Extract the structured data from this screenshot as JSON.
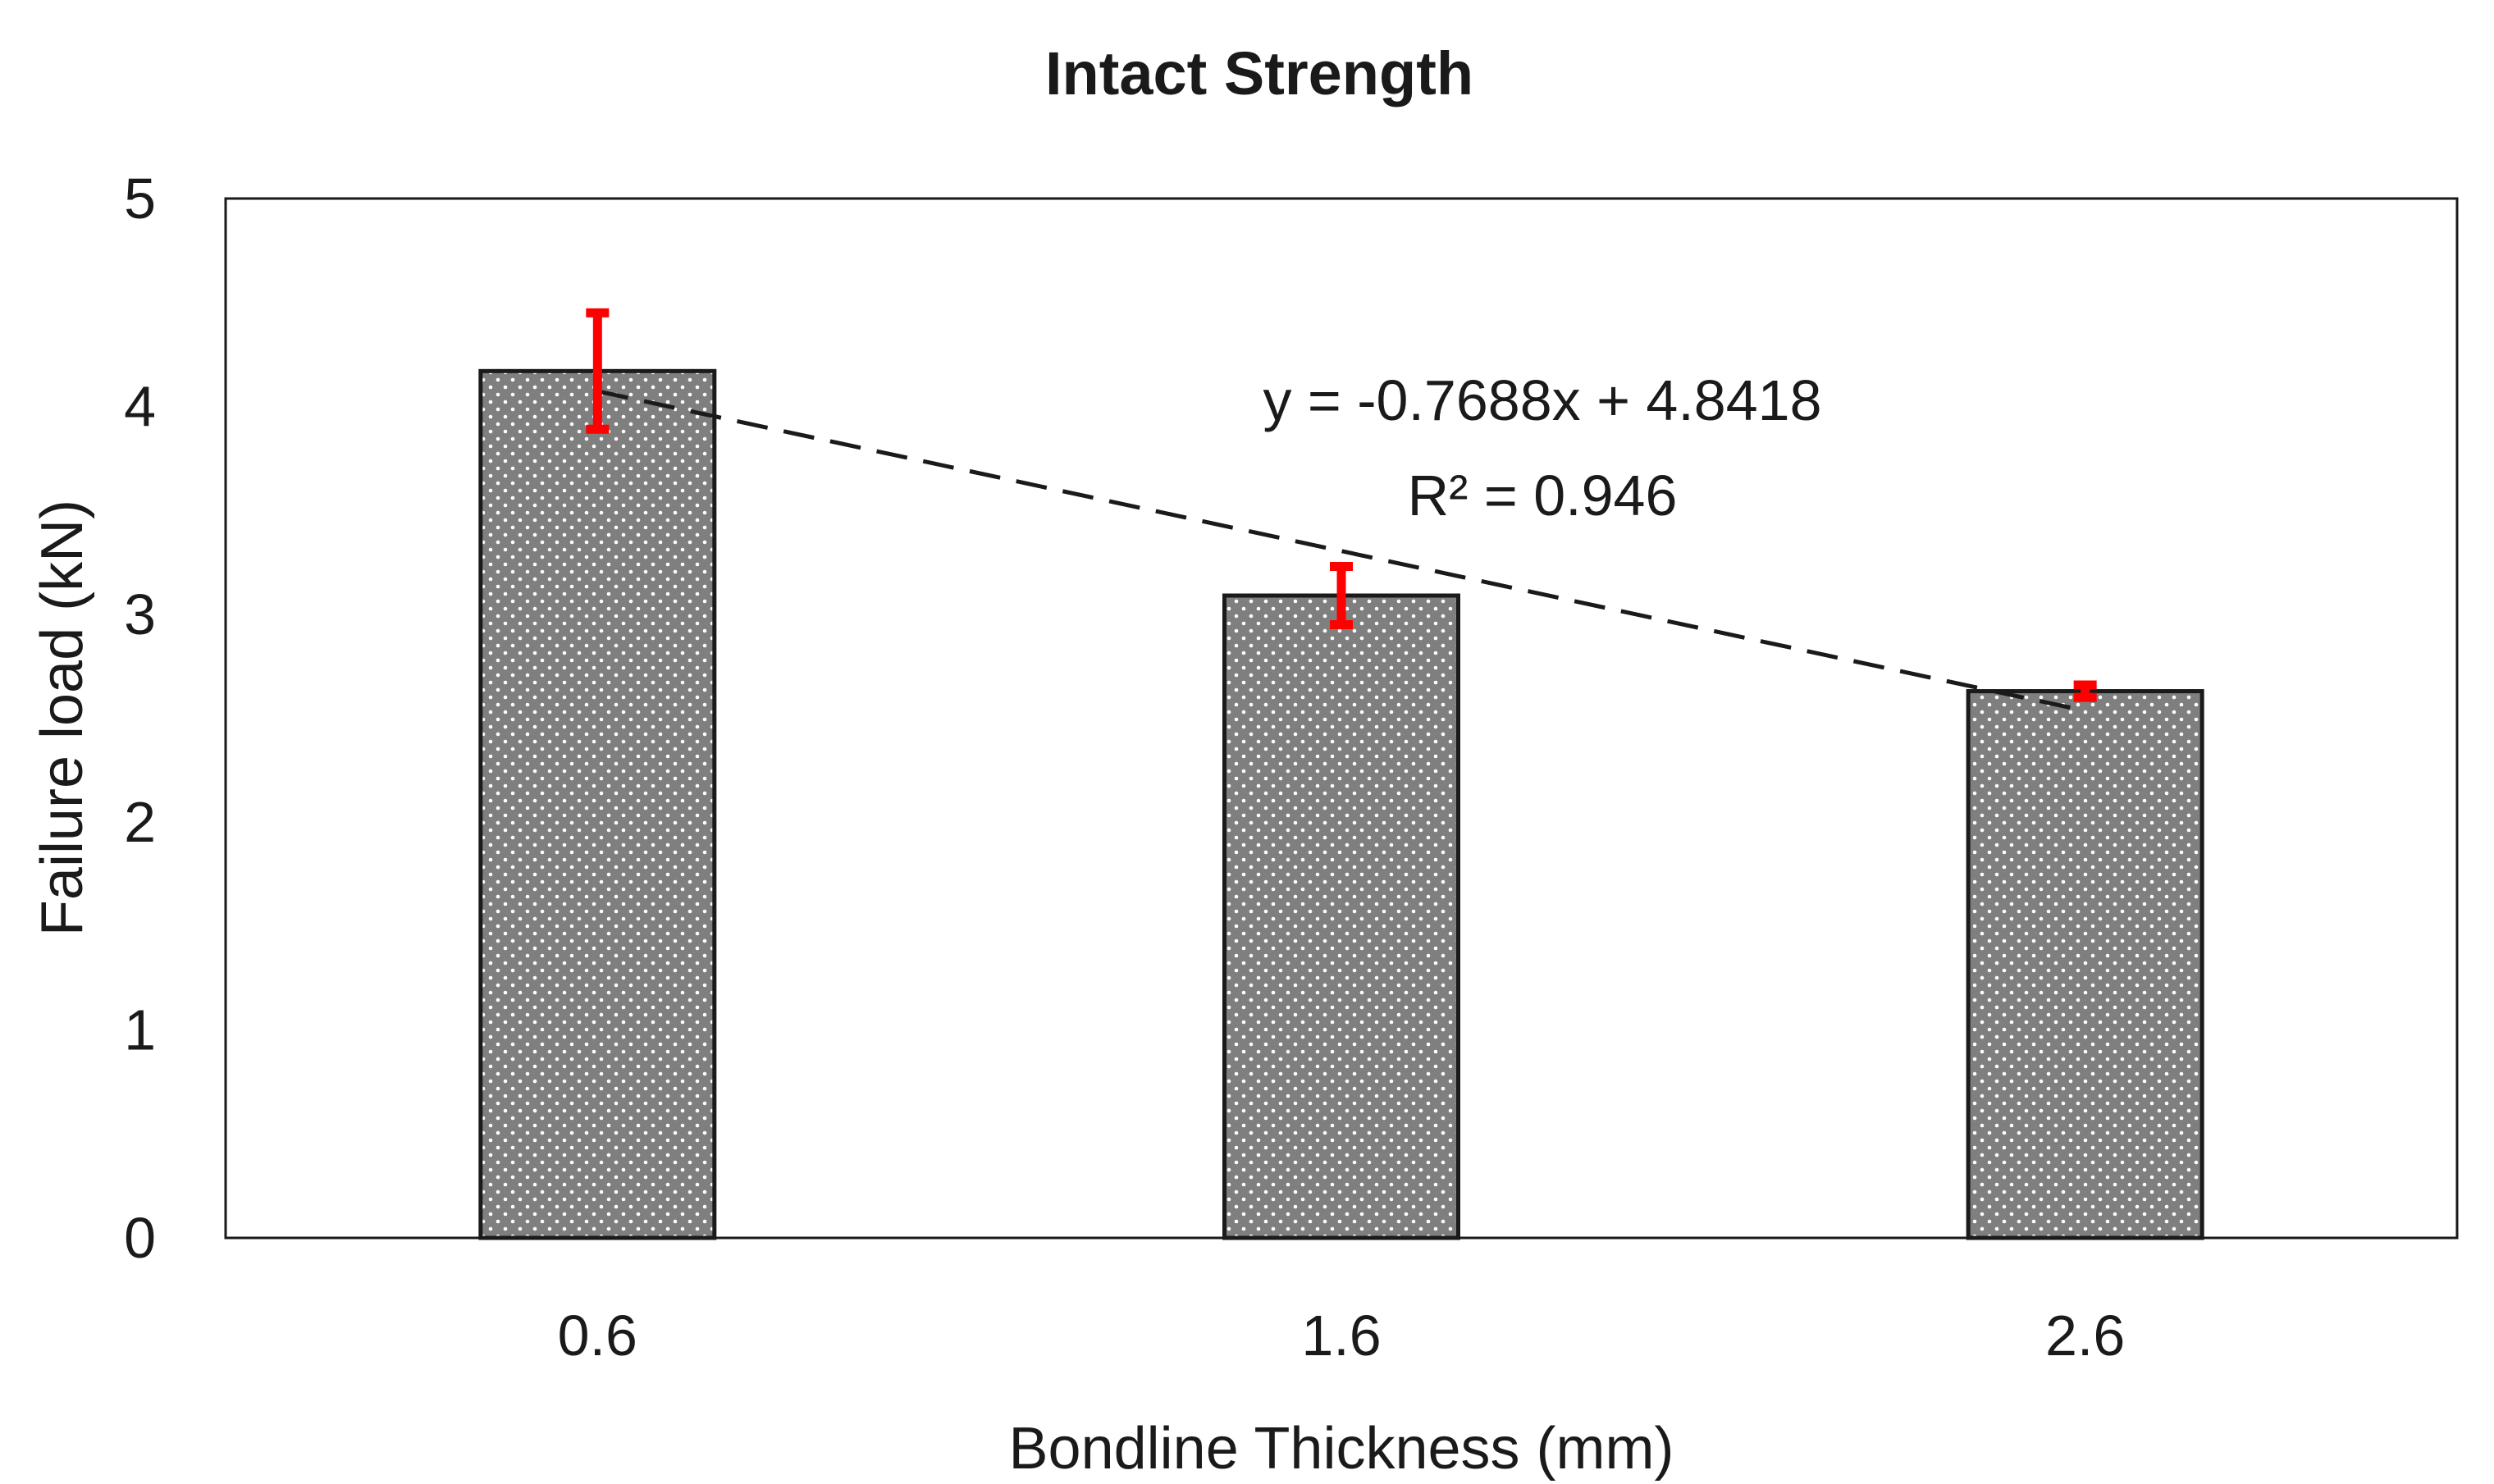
{
  "chart_data": {
    "type": "bar",
    "title": "Intact Strength",
    "xlabel": "Bondline Thickness (mm)",
    "ylabel": "Failure load (kN)",
    "categories": [
      "0.6",
      "1.6",
      "2.6"
    ],
    "values": [
      4.17,
      3.09,
      2.63
    ],
    "errors": [
      0.28,
      0.14,
      0.03
    ],
    "ylim": [
      0,
      5
    ],
    "yticks": [
      "0",
      "1",
      "2",
      "3",
      "4",
      "5"
    ],
    "trendline": {
      "type": "linear",
      "slope": -0.7688,
      "intercept": 4.8418,
      "x_index_start": 1,
      "x_index_end": 3,
      "equation": "y = -0.7688x + 4.8418",
      "r_squared": "R² = 0.946"
    },
    "colors": {
      "bar_fill": "#7f7f7f",
      "bar_dots": "#ffffff",
      "bar_stroke": "#1a1a1a",
      "error_bar": "#ff0000",
      "trendline": "#1a1a1a"
    },
    "grid": false,
    "legend": "none"
  }
}
